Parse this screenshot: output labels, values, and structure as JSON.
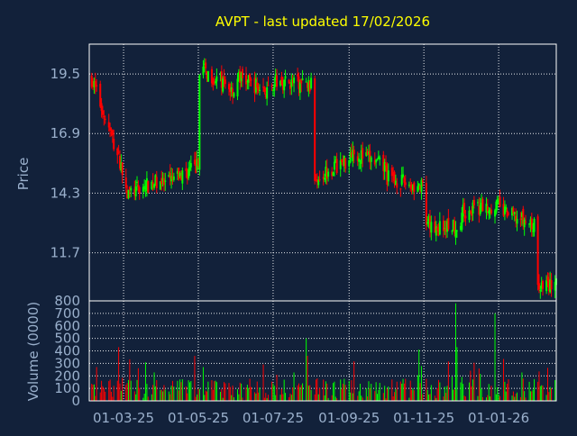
{
  "title": "AVPT - last updated 17/02/2026",
  "colors": {
    "background": "#12213a",
    "title": "#ffff00",
    "axis_text": "#9ab0cc",
    "frame": "#ffffff",
    "grid": "#ffffff",
    "up": "#00ff00",
    "down": "#ff0000"
  },
  "chart_data": [
    {
      "type": "candlestick",
      "ylabel": "Price",
      "ylim": [
        9.6,
        20.8
      ],
      "yticks": [
        11.7,
        14.3,
        16.9,
        19.5
      ],
      "ytick_labels": [
        "11.7",
        "14.3",
        "16.9",
        "19.5"
      ],
      "grid": "dotted",
      "series": [
        {
          "date": "01-02-25",
          "close": 19.6
        },
        {
          "date": "01-03-25",
          "close": 15.2
        },
        {
          "date": "01-03-25",
          "close": 14.2
        },
        {
          "date": "01-04-25",
          "close": 14.9
        },
        {
          "date": "01-04-25",
          "close": 13.0
        },
        {
          "date": "01-04-25",
          "close": 14.6
        },
        {
          "date": "01-05-25",
          "close": 15.5
        },
        {
          "date": "01-05-25",
          "close": 17.0
        },
        {
          "date": "01-05-25",
          "close": 19.8
        },
        {
          "date": "01-06-25",
          "close": 18.7
        },
        {
          "date": "01-06-25",
          "close": 19.4
        },
        {
          "date": "01-07-25",
          "close": 18.6
        },
        {
          "date": "01-07-25",
          "close": 19.2
        },
        {
          "date": "01-08-25",
          "close": 19.0
        },
        {
          "date": "01-08-25",
          "close": 18.6
        },
        {
          "date": "01-08-25",
          "close": 15.2
        },
        {
          "date": "01-08-25",
          "close": 14.9
        },
        {
          "date": "01-09-25",
          "close": 15.8
        },
        {
          "date": "01-09-25",
          "close": 16.2
        },
        {
          "date": "01-10-25",
          "close": 15.4
        },
        {
          "date": "01-10-25",
          "close": 15.0
        },
        {
          "date": "01-11-25",
          "close": 14.5
        },
        {
          "date": "01-11-25",
          "close": 12.8
        },
        {
          "date": "01-12-25",
          "close": 12.9
        },
        {
          "date": "01-12-25",
          "close": 13.5
        },
        {
          "date": "01-01-26",
          "close": 13.8
        },
        {
          "date": "01-01-26",
          "close": 13.6
        },
        {
          "date": "01-02-26",
          "close": 12.8
        },
        {
          "date": "01-02-26",
          "close": 10.3
        }
      ]
    },
    {
      "type": "bar",
      "ylabel": "Volume (0000)",
      "ylim": [
        0,
        800
      ],
      "yticks": [
        0,
        100,
        200,
        300,
        400,
        500,
        600,
        700,
        800
      ],
      "ytick_labels": [
        "0",
        "100",
        "200",
        "300",
        "400",
        "500",
        "600",
        "700",
        "800"
      ],
      "grid": "dotted",
      "notable_bars": [
        {
          "date": "01-03-25",
          "value": 430
        },
        {
          "date": "01-05-25",
          "value": 360
        },
        {
          "date": "01-08-25",
          "value": 500
        },
        {
          "date": "01-08-25",
          "value": 360
        },
        {
          "date": "01-11-25",
          "value": 410
        },
        {
          "date": "01-12-25",
          "value": 780
        },
        {
          "date": "01-12-25",
          "value": 430
        },
        {
          "date": "01-01-26",
          "value": 700
        }
      ]
    }
  ],
  "x_axis": {
    "tick_labels": [
      "01-03-25",
      "01-05-25",
      "01-07-25",
      "01-09-25",
      "01-11-25",
      "01-01-26"
    ],
    "start": "01-02-25",
    "end": "17-02-26"
  }
}
